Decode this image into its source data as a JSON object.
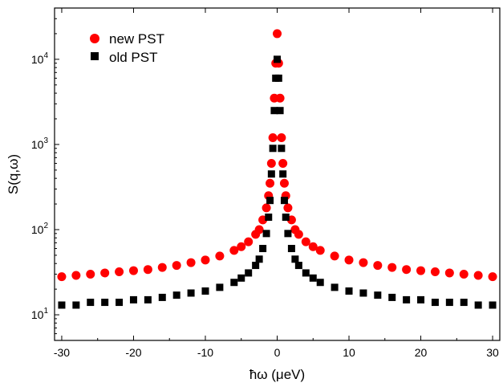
{
  "chart_data": {
    "type": "scatter",
    "title": "",
    "xlabel": "ħω (μeV)",
    "ylabel": "S(q,ω)",
    "xlim": [
      -31,
      31
    ],
    "ylim": [
      5,
      40000
    ],
    "yscale": "log",
    "grid": false,
    "legend_position": "top-left",
    "x_ticks": [
      -30,
      -20,
      -10,
      0,
      10,
      20,
      30
    ],
    "y_ticks": [
      {
        "value": 10,
        "base": "10",
        "exp": "1"
      },
      {
        "value": 100,
        "base": "10",
        "exp": "2"
      },
      {
        "value": 1000,
        "base": "10",
        "exp": "3"
      },
      {
        "value": 10000,
        "base": "10",
        "exp": "4"
      }
    ],
    "series": [
      {
        "name": "new PST",
        "marker": "circle",
        "color": "#ff0000",
        "x": [
          -30,
          -28,
          -26,
          -24,
          -22,
          -20,
          -18,
          -16,
          -14,
          -12,
          -10,
          -8,
          -6,
          -5,
          -4,
          -3,
          -2.5,
          -2,
          -1.5,
          -1.2,
          -1,
          -0.8,
          -0.6,
          -0.4,
          -0.2,
          0,
          0.2,
          0.4,
          0.6,
          0.8,
          1,
          1.2,
          1.5,
          2,
          2.5,
          3,
          4,
          5,
          6,
          8,
          10,
          12,
          14,
          16,
          18,
          20,
          22,
          24,
          26,
          28,
          30
        ],
        "y": [
          28,
          29,
          30,
          31,
          32,
          33,
          34,
          36,
          38,
          41,
          44,
          49,
          57,
          63,
          72,
          88,
          100,
          130,
          180,
          250,
          350,
          600,
          1200,
          3500,
          9000,
          20000,
          9000,
          3500,
          1200,
          600,
          350,
          250,
          180,
          130,
          100,
          88,
          72,
          63,
          57,
          49,
          44,
          41,
          38,
          36,
          34,
          33,
          32,
          31,
          30,
          29,
          28
        ]
      },
      {
        "name": "old PST",
        "marker": "square",
        "color": "#000000",
        "x": [
          -30,
          -28,
          -26,
          -24,
          -22,
          -20,
          -18,
          -16,
          -14,
          -12,
          -10,
          -8,
          -6,
          -5,
          -4,
          -3,
          -2.5,
          -2,
          -1.5,
          -1.2,
          -1,
          -0.8,
          -0.6,
          -0.4,
          -0.2,
          0,
          0.2,
          0.4,
          0.6,
          0.8,
          1,
          1.2,
          1.5,
          2,
          2.5,
          3,
          4,
          5,
          6,
          8,
          10,
          12,
          14,
          16,
          18,
          20,
          22,
          24,
          26,
          28,
          30
        ],
        "y": [
          13,
          13,
          14,
          14,
          14,
          15,
          15,
          16,
          17,
          18,
          19,
          21,
          24,
          27,
          31,
          38,
          45,
          60,
          90,
          140,
          220,
          450,
          900,
          2500,
          6000,
          10000,
          6000,
          2500,
          900,
          450,
          220,
          140,
          90,
          60,
          45,
          38,
          31,
          27,
          24,
          21,
          19,
          18,
          17,
          16,
          15,
          15,
          14,
          14,
          14,
          13,
          13
        ]
      }
    ]
  }
}
